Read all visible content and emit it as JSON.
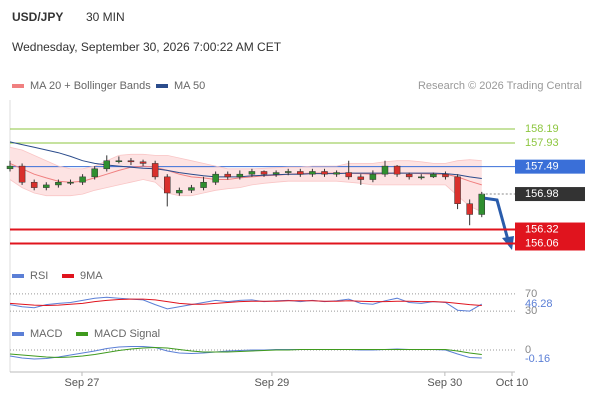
{
  "header": {
    "title": "USD/JPY",
    "timeframe": "30 MIN",
    "date": "Wednesday, September 30, 2026 7:00:22 AM CET",
    "credit": "Research © 2026 Trading Central"
  },
  "chart_data": [
    {
      "type": "candlestick",
      "xlim": [
        0,
        41.5
      ],
      "xticks": [
        {
          "value": 5.95,
          "label": "Sep 27"
        },
        {
          "value": 21.65,
          "label": "Sep 29"
        },
        {
          "value": 35.95,
          "label": "Sep 30"
        },
        {
          "value": 41.5,
          "label": "Oct 10"
        }
      ],
      "ylim": [
        155.66,
        158.73
      ],
      "up_color": "#2f8f2f",
      "down_color": "#d9302c",
      "candles": {
        "open": [
          157.45,
          157.5,
          157.2,
          157.1,
          157.15,
          157.2,
          157.2,
          157.3,
          157.45,
          157.6,
          157.6,
          157.58,
          157.55,
          157.3,
          157.0,
          157.05,
          157.1,
          157.2,
          157.35,
          157.3,
          157.35,
          157.4,
          157.35,
          157.38,
          157.4,
          157.35,
          157.4,
          157.35,
          157.38,
          157.3,
          157.25,
          157.35,
          157.5,
          157.35,
          157.3,
          157.3,
          157.35,
          157.3,
          156.8,
          156.6
        ],
        "high": [
          157.6,
          157.55,
          157.25,
          157.2,
          157.25,
          157.25,
          157.35,
          157.5,
          157.7,
          157.68,
          157.65,
          157.62,
          157.6,
          157.35,
          157.1,
          157.15,
          157.3,
          157.4,
          157.4,
          157.42,
          157.45,
          157.42,
          157.42,
          157.45,
          157.45,
          157.45,
          157.45,
          157.42,
          157.6,
          157.35,
          157.42,
          157.6,
          157.52,
          157.38,
          157.35,
          157.38,
          157.4,
          157.35,
          156.88,
          157.02
        ],
        "low": [
          157.4,
          157.15,
          157.05,
          157.05,
          157.1,
          157.15,
          157.15,
          157.25,
          157.4,
          157.55,
          157.52,
          157.5,
          157.25,
          156.75,
          156.95,
          157.0,
          157.05,
          157.15,
          157.25,
          157.25,
          157.3,
          157.3,
          157.3,
          157.33,
          157.3,
          157.3,
          157.3,
          157.3,
          157.25,
          157.15,
          157.2,
          157.3,
          157.3,
          157.25,
          157.25,
          157.28,
          157.25,
          156.7,
          156.4,
          156.55
        ],
        "close": [
          157.5,
          157.2,
          157.1,
          157.15,
          157.2,
          157.2,
          157.3,
          157.45,
          157.6,
          157.6,
          157.58,
          157.55,
          157.3,
          157.0,
          157.05,
          157.1,
          157.2,
          157.35,
          157.3,
          157.35,
          157.4,
          157.35,
          157.38,
          157.4,
          157.35,
          157.4,
          157.35,
          157.38,
          157.3,
          157.25,
          157.35,
          157.5,
          157.35,
          157.3,
          157.3,
          157.35,
          157.3,
          156.8,
          156.6,
          156.98
        ]
      },
      "series": [
        {
          "name": "MA 20 + Bollinger Bands",
          "color": "#f08080",
          "band_color": "#fde3e3",
          "values": [
            157.55,
            157.45,
            157.35,
            157.28,
            157.22,
            157.2,
            157.22,
            157.28,
            157.35,
            157.42,
            157.48,
            157.5,
            157.48,
            157.42,
            157.35,
            157.3,
            157.28,
            157.25,
            157.25,
            157.28,
            157.3,
            157.32,
            157.33,
            157.35,
            157.36,
            157.37,
            157.37,
            157.37,
            157.37,
            157.36,
            157.35,
            157.36,
            157.37,
            157.37,
            157.36,
            157.35,
            157.35,
            157.3,
            157.22,
            157.15
          ],
          "upper": [
            157.85,
            157.8,
            157.7,
            157.6,
            157.5,
            157.45,
            157.45,
            157.5,
            157.6,
            157.7,
            157.72,
            157.72,
            157.7,
            157.7,
            157.65,
            157.6,
            157.55,
            157.5,
            157.45,
            157.45,
            157.45,
            157.46,
            157.47,
            157.48,
            157.48,
            157.5,
            157.5,
            157.5,
            157.55,
            157.55,
            157.55,
            157.58,
            157.6,
            157.6,
            157.58,
            157.55,
            157.55,
            157.6,
            157.62,
            157.6
          ],
          "lower": [
            157.25,
            157.1,
            157.0,
            156.95,
            156.95,
            156.95,
            156.98,
            157.05,
            157.1,
            157.15,
            157.2,
            157.25,
            157.2,
            157.0,
            156.95,
            156.95,
            157.0,
            157.05,
            157.08,
            157.1,
            157.15,
            157.18,
            157.2,
            157.22,
            157.22,
            157.22,
            157.22,
            157.22,
            157.2,
            157.18,
            157.15,
            157.15,
            157.15,
            157.15,
            157.15,
            157.15,
            157.15,
            156.95,
            156.75,
            156.65
          ]
        },
        {
          "name": "MA 50",
          "color": "#2b4c8c",
          "values": [
            157.95,
            157.9,
            157.85,
            157.8,
            157.75,
            157.68,
            157.6,
            157.55,
            157.52,
            157.5,
            157.48,
            157.46,
            157.45,
            157.42,
            157.38,
            157.35,
            157.32,
            157.3,
            157.3,
            157.3,
            157.32,
            157.33,
            157.34,
            157.35,
            157.35,
            157.36,
            157.36,
            157.36,
            157.37,
            157.37,
            157.37,
            157.37,
            157.37,
            157.37,
            157.37,
            157.37,
            157.36,
            157.34,
            157.3,
            157.27
          ]
        }
      ],
      "levels": [
        {
          "value": 158.19,
          "color": "#8dc63f",
          "style": "text"
        },
        {
          "value": 157.93,
          "color": "#8dc63f",
          "style": "text"
        },
        {
          "value": 157.49,
          "color": "#3a6fd8",
          "style": "box"
        },
        {
          "value": 156.32,
          "color": "#e0141e",
          "style": "box"
        },
        {
          "value": 156.06,
          "color": "#e0141e",
          "style": "box"
        }
      ],
      "last_color": "#333333"
    },
    {
      "type": "line",
      "ylim": [
        0,
        100
      ],
      "yticks": [
        70,
        30
      ],
      "series": [
        {
          "name": "RSI",
          "color": "#5b7fd6",
          "values": [
            45,
            40,
            38,
            45,
            48,
            50,
            55,
            60,
            62,
            60,
            58,
            56,
            45,
            35,
            40,
            45,
            50,
            55,
            52,
            55,
            56,
            52,
            54,
            55,
            52,
            55,
            52,
            54,
            58,
            48,
            46,
            54,
            60,
            50,
            48,
            52,
            50,
            32,
            30,
            46.28
          ]
        },
        {
          "name": "9MA",
          "color": "#e0141e",
          "values": [
            48,
            46,
            44,
            43,
            44,
            46,
            48,
            52,
            55,
            57,
            58,
            58,
            56,
            52,
            48,
            46,
            46,
            48,
            50,
            52,
            53,
            53,
            53,
            54,
            54,
            54,
            53,
            53,
            54,
            53,
            52,
            52,
            53,
            53,
            52,
            52,
            51,
            48,
            45,
            43
          ]
        }
      ]
    },
    {
      "type": "line",
      "ylim": [
        -0.44,
        0.2
      ],
      "yticks": [
        0
      ],
      "series": [
        {
          "name": "MACD",
          "color": "#5b7fd6",
          "values": [
            -0.12,
            -0.16,
            -0.18,
            -0.17,
            -0.14,
            -0.1,
            -0.06,
            -0.02,
            0.03,
            0.06,
            0.07,
            0.07,
            0.05,
            -0.02,
            -0.06,
            -0.07,
            -0.06,
            -0.04,
            -0.02,
            -0.01,
            0,
            0,
            0.01,
            0.01,
            0.01,
            0.01,
            0.01,
            0.01,
            0.01,
            0,
            0,
            0.01,
            0.02,
            0.01,
            0.01,
            0.01,
            0,
            -0.08,
            -0.15,
            -0.16
          ]
        },
        {
          "name": "MACD Signal",
          "color": "#3f9a1e",
          "values": [
            -0.08,
            -0.1,
            -0.12,
            -0.14,
            -0.15,
            -0.14,
            -0.12,
            -0.09,
            -0.05,
            -0.01,
            0.02,
            0.04,
            0.05,
            0.04,
            0.01,
            -0.02,
            -0.04,
            -0.04,
            -0.04,
            -0.03,
            -0.02,
            -0.01,
            0,
            0,
            0.01,
            0.01,
            0.01,
            0.01,
            0.01,
            0.01,
            0.01,
            0.01,
            0.01,
            0.01,
            0.01,
            0.01,
            0.01,
            -0.02,
            -0.06,
            -0.09
          ]
        }
      ]
    }
  ]
}
